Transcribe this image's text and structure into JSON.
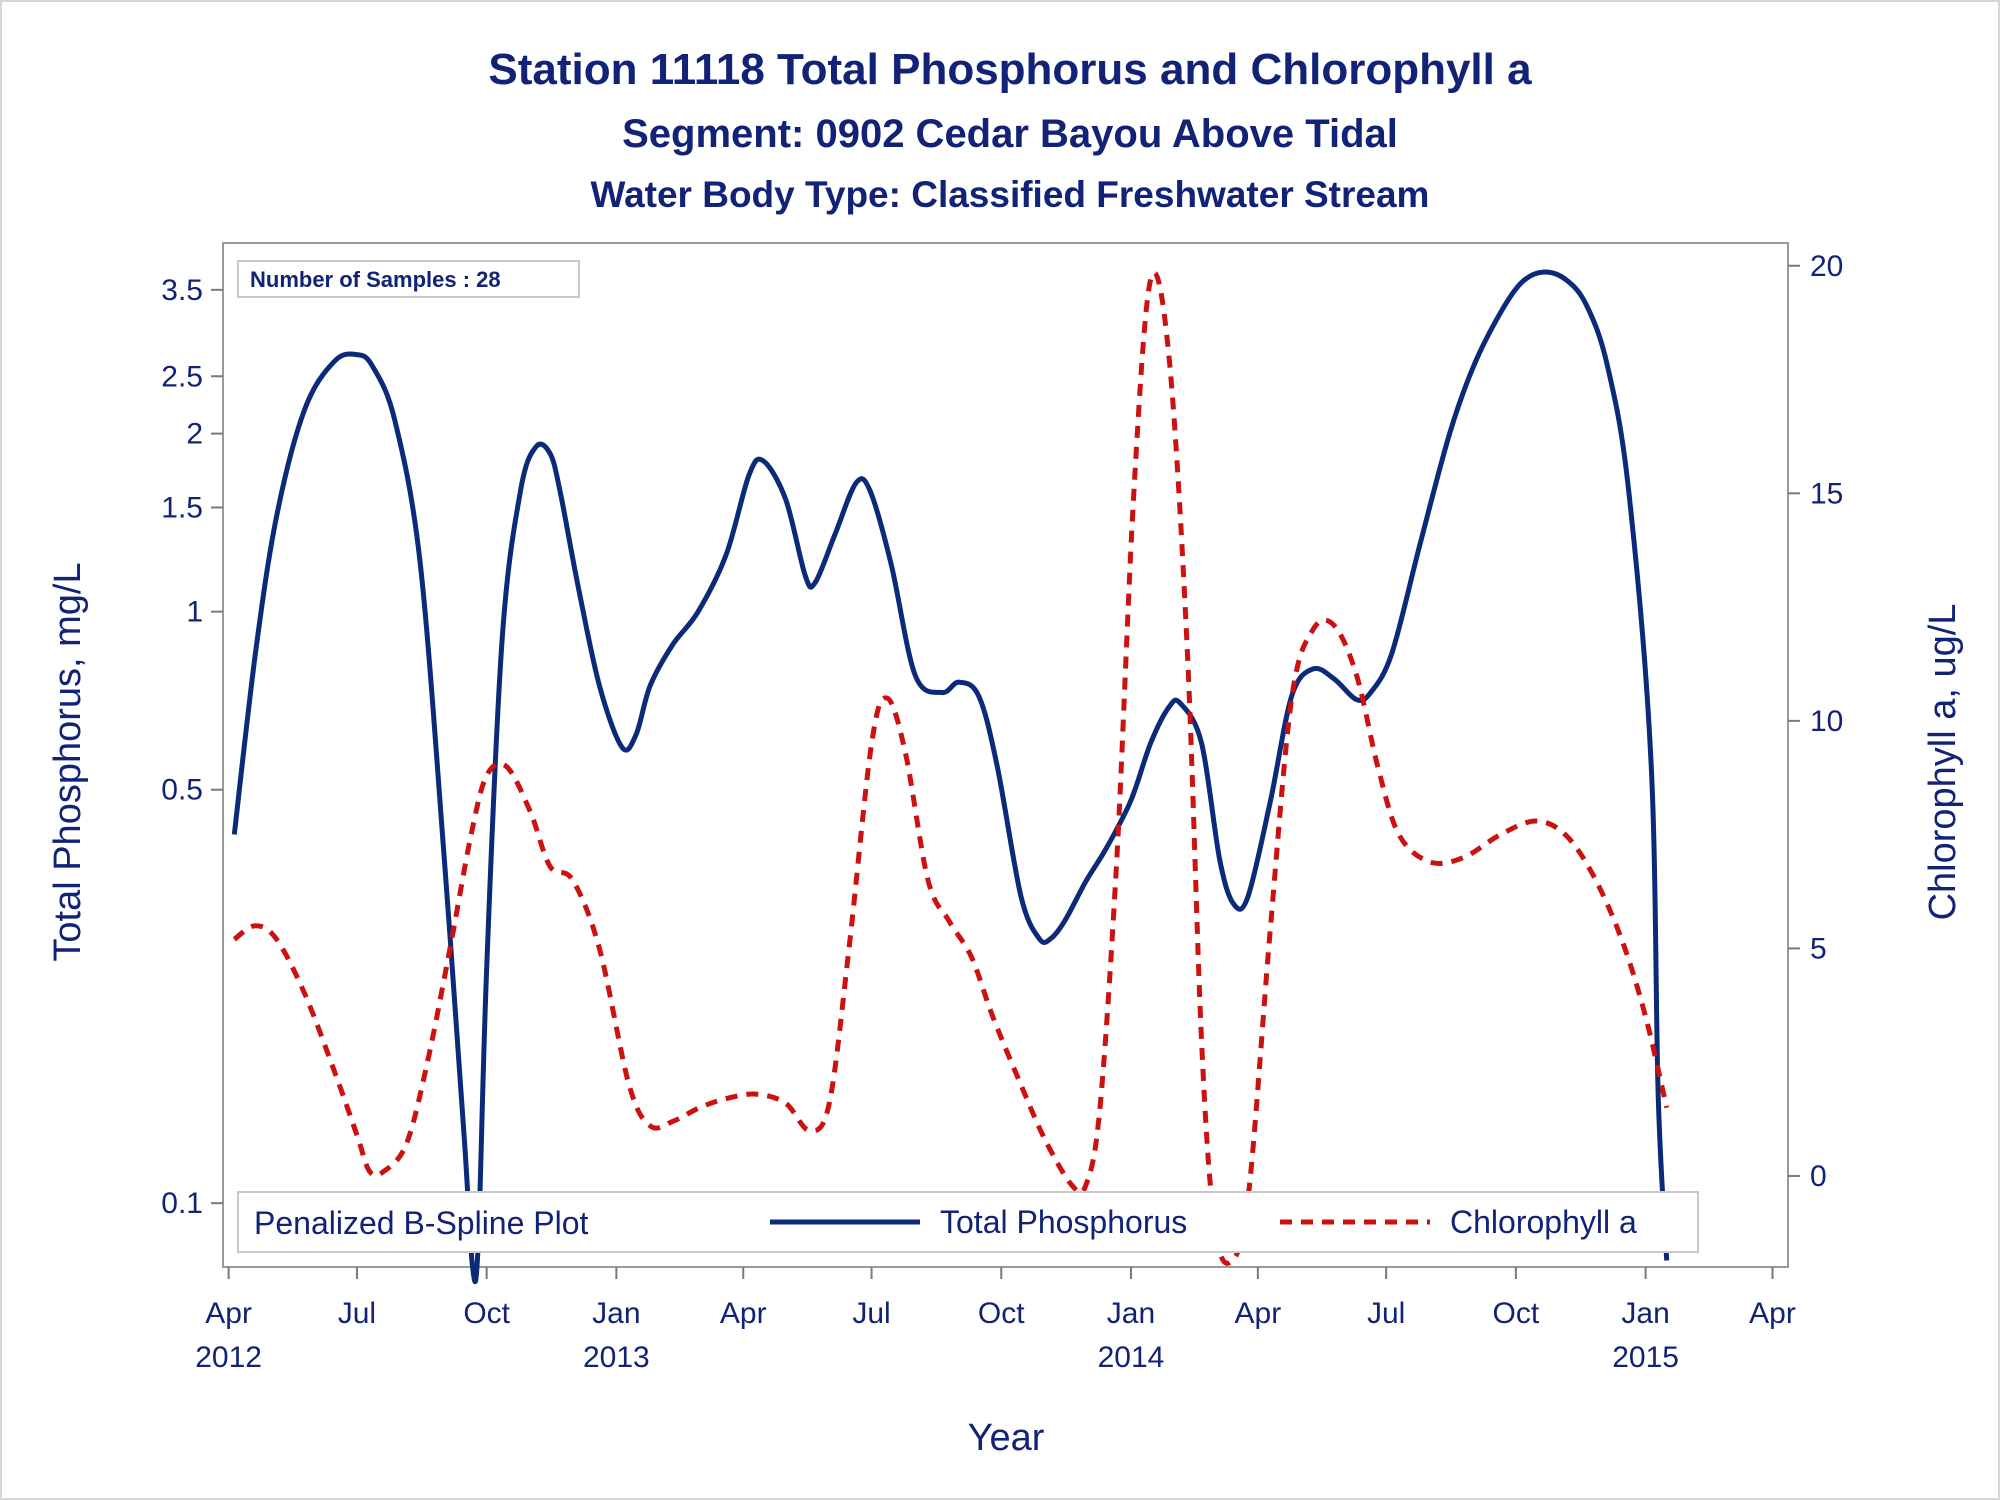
{
  "chart_data": {
    "type": "line",
    "title": "Station 11118  Total Phosphorus and Chlorophyll a",
    "subtitle1": "Segment: 0902  Cedar Bayou Above Tidal",
    "subtitle2": "Water Body Type: Classified Freshwater Stream",
    "xlabel": "Year",
    "ylabel_left": "Total Phosphorus, mg/L",
    "ylabel_right": "Chlorophyll a, ug/L",
    "sample_note": "Number of Samples : 28",
    "legend_title": "Penalized B-Spline Plot",
    "y_left_scale": "log",
    "y_left_range": [
      0.078,
      4.2
    ],
    "y_left_ticks": [
      0.1,
      0.5,
      1,
      1.5,
      2,
      2.5,
      3.5
    ],
    "y_left_tick_labels": [
      "0.1",
      "0.5",
      "1",
      "1.5",
      "2",
      "2.5",
      "3.5"
    ],
    "y_right_range": [
      -2,
      20.5
    ],
    "y_right_ticks": [
      0,
      5,
      10,
      15,
      20
    ],
    "y_right_tick_labels": [
      "0",
      "5",
      "10",
      "15",
      "20"
    ],
    "x_range": [
      "2012-03-28",
      "2015-04-12"
    ],
    "x_ticks": [
      "2012-04-01",
      "2012-07-01",
      "2012-10-01",
      "2013-01-01",
      "2013-04-01",
      "2013-07-01",
      "2013-10-01",
      "2014-01-01",
      "2014-04-01",
      "2014-07-01",
      "2014-10-01",
      "2015-01-01",
      "2015-04-01"
    ],
    "x_tick_labels": [
      {
        "month": "Apr",
        "year": "2012"
      },
      {
        "month": "Jul",
        "year": ""
      },
      {
        "month": "Oct",
        "year": ""
      },
      {
        "month": "Jan",
        "year": "2013"
      },
      {
        "month": "Apr",
        "year": ""
      },
      {
        "month": "Jul",
        "year": ""
      },
      {
        "month": "Oct",
        "year": ""
      },
      {
        "month": "Jan",
        "year": "2014"
      },
      {
        "month": "Apr",
        "year": ""
      },
      {
        "month": "Jul",
        "year": ""
      },
      {
        "month": "Oct",
        "year": ""
      },
      {
        "month": "Jan",
        "year": "2015"
      },
      {
        "month": "Apr",
        "year": ""
      }
    ],
    "grid": false,
    "legend_position": "bottom-inside",
    "series": [
      {
        "name": "Total Phosphorus",
        "axis": "left",
        "color": "#0b2a78",
        "style": "solid",
        "x": [
          "2012-04-05",
          "2012-04-20",
          "2012-05-05",
          "2012-05-25",
          "2012-06-15",
          "2012-07-01",
          "2012-07-12",
          "2012-07-28",
          "2012-08-15",
          "2012-09-01",
          "2012-09-15",
          "2012-09-21",
          "2012-09-25",
          "2012-10-01",
          "2012-10-12",
          "2012-10-25",
          "2012-11-05",
          "2012-11-15",
          "2012-11-22",
          "2012-12-05",
          "2012-12-20",
          "2013-01-05",
          "2013-01-15",
          "2013-01-25",
          "2013-02-10",
          "2013-02-28",
          "2013-03-20",
          "2013-04-05",
          "2013-04-15",
          "2013-05-01",
          "2013-05-15",
          "2013-05-22",
          "2013-06-05",
          "2013-06-20",
          "2013-06-30",
          "2013-07-15",
          "2013-08-01",
          "2013-08-20",
          "2013-09-01",
          "2013-09-15",
          "2013-09-28",
          "2013-10-15",
          "2013-10-28",
          "2013-11-05",
          "2013-11-15",
          "2013-11-30",
          "2013-12-15",
          "2014-01-01",
          "2014-01-15",
          "2014-01-28",
          "2014-02-05",
          "2014-02-20",
          "2014-03-05",
          "2014-03-15",
          "2014-03-25",
          "2014-04-10",
          "2014-04-25",
          "2014-05-10",
          "2014-05-25",
          "2014-06-10",
          "2014-06-20",
          "2014-07-05",
          "2014-07-25",
          "2014-08-15",
          "2014-09-01",
          "2014-09-20",
          "2014-10-05",
          "2014-10-20",
          "2014-11-05",
          "2014-11-20",
          "2014-12-05",
          "2014-12-20",
          "2015-01-05",
          "2015-01-10",
          "2015-01-16"
        ],
        "y": [
          0.42,
          0.85,
          1.45,
          2.2,
          2.65,
          2.72,
          2.6,
          2.1,
          1.2,
          0.38,
          0.13,
          0.078,
          0.085,
          0.25,
          0.9,
          1.6,
          1.9,
          1.85,
          1.6,
          1.1,
          0.75,
          0.59,
          0.62,
          0.75,
          0.88,
          1.0,
          1.25,
          1.7,
          1.8,
          1.55,
          1.15,
          1.12,
          1.35,
          1.65,
          1.6,
          1.2,
          0.78,
          0.73,
          0.76,
          0.72,
          0.55,
          0.33,
          0.28,
          0.28,
          0.3,
          0.35,
          0.4,
          0.48,
          0.6,
          0.69,
          0.7,
          0.6,
          0.38,
          0.32,
          0.33,
          0.48,
          0.72,
          0.8,
          0.77,
          0.71,
          0.73,
          0.85,
          1.3,
          2.0,
          2.6,
          3.2,
          3.6,
          3.75,
          3.65,
          3.3,
          2.6,
          1.6,
          0.55,
          0.15,
          0.08
        ]
      },
      {
        "name": "Chlorophyll a",
        "axis": "right",
        "color": "#cc1111",
        "style": "dashed",
        "x": [
          "2012-04-05",
          "2012-04-20",
          "2012-05-05",
          "2012-05-25",
          "2012-06-15",
          "2012-07-01",
          "2012-07-10",
          "2012-07-20",
          "2012-08-05",
          "2012-08-20",
          "2012-09-05",
          "2012-09-20",
          "2012-10-01",
          "2012-10-15",
          "2012-11-01",
          "2012-11-15",
          "2012-12-01",
          "2012-12-20",
          "2013-01-10",
          "2013-01-25",
          "2013-02-10",
          "2013-03-01",
          "2013-03-20",
          "2013-04-10",
          "2013-05-01",
          "2013-05-18",
          "2013-06-01",
          "2013-06-15",
          "2013-07-01",
          "2013-07-12",
          "2013-07-25",
          "2013-08-10",
          "2013-08-25",
          "2013-09-10",
          "2013-09-25",
          "2013-10-15",
          "2013-11-01",
          "2013-11-20",
          "2013-11-30",
          "2013-12-10",
          "2013-12-22",
          "2014-01-03",
          "2014-01-15",
          "2014-01-28",
          "2014-02-10",
          "2014-02-20",
          "2014-03-01",
          "2014-03-12",
          "2014-03-25",
          "2014-04-10",
          "2014-04-25",
          "2014-05-10",
          "2014-05-25",
          "2014-06-10",
          "2014-06-25",
          "2014-07-10",
          "2014-08-01",
          "2014-08-25",
          "2014-09-20",
          "2014-10-15",
          "2014-11-05",
          "2014-11-25",
          "2014-12-15",
          "2015-01-01",
          "2015-01-16"
        ],
        "y": [
          5.2,
          5.5,
          5.2,
          4.0,
          2.3,
          0.9,
          0.1,
          0.1,
          0.7,
          2.5,
          5.0,
          7.5,
          8.8,
          9.0,
          8.0,
          6.8,
          6.5,
          5.0,
          2.0,
          1.1,
          1.2,
          1.5,
          1.7,
          1.8,
          1.6,
          1.0,
          1.6,
          5.0,
          9.5,
          10.5,
          9.3,
          6.5,
          5.6,
          4.8,
          3.5,
          2.0,
          0.8,
          -0.2,
          -0.2,
          1.5,
          7.0,
          15.0,
          19.7,
          18.0,
          11.5,
          3.0,
          -1.0,
          -1.9,
          -0.5,
          5.5,
          10.5,
          12.0,
          12.1,
          11.0,
          9.0,
          7.5,
          6.9,
          7.0,
          7.5,
          7.8,
          7.5,
          6.6,
          5.2,
          3.5,
          1.5
        ]
      }
    ]
  }
}
